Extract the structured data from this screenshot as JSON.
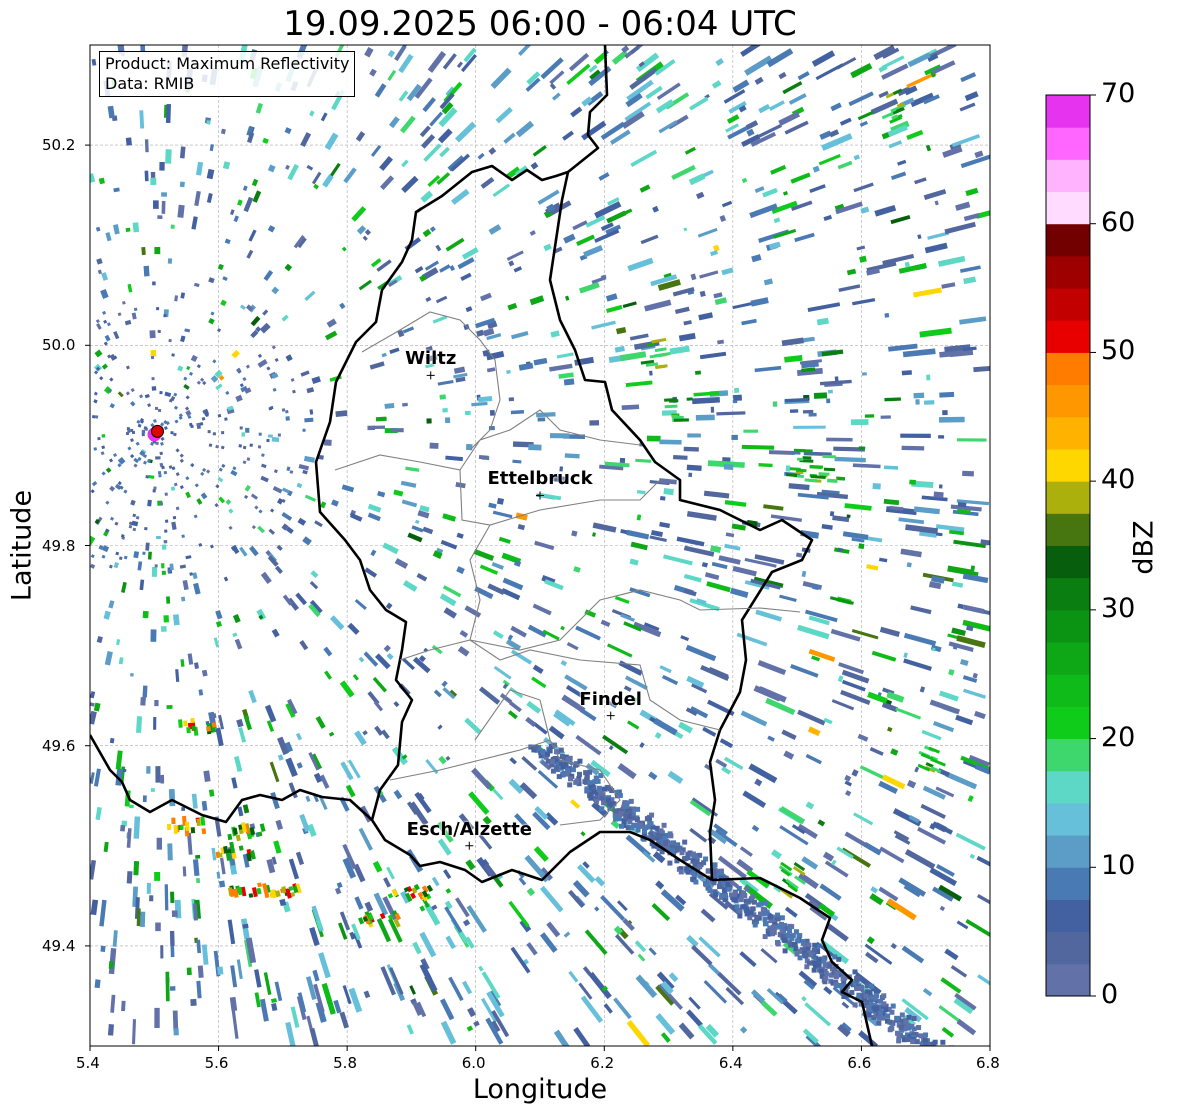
{
  "title": "19.09.2025 06:00 - 06:04 UTC",
  "info_box": {
    "product": "Product: Maximum Reflectivity",
    "source": "Data: RMIB"
  },
  "chart_data": {
    "type": "heatmap",
    "title": "19.09.2025 06:00 - 06:04 UTC",
    "xlabel": "Longitude",
    "ylabel": "Latitude",
    "xlim": [
      5.4,
      6.8
    ],
    "ylim": [
      49.3,
      50.3
    ],
    "xticks": [
      "5.4",
      "5.6",
      "5.8",
      "6.0",
      "6.2",
      "6.4",
      "6.6",
      "6.8"
    ],
    "yticks": [
      "49.4",
      "49.6",
      "49.8",
      "50.0",
      "50.2"
    ],
    "grid": true,
    "cities": [
      {
        "name": "Wiltz",
        "lon": 5.93,
        "lat": 49.97
      },
      {
        "name": "Ettelbruck",
        "lon": 6.1,
        "lat": 49.85
      },
      {
        "name": "Findel",
        "lon": 6.21,
        "lat": 49.63
      },
      {
        "name": "Esch/Alzette",
        "lon": 5.99,
        "lat": 49.5
      }
    ],
    "radar_site": {
      "lon": 5.505,
      "lat": 49.914
    },
    "colorbar": {
      "label": "dBZ",
      "range": [
        0,
        70
      ],
      "step": 2.5,
      "ticks": [
        "0",
        "10",
        "20",
        "30",
        "40",
        "50",
        "60",
        "70"
      ],
      "colors": [
        "#6272a8",
        "#52679e",
        "#4361a0",
        "#4a7ab3",
        "#5b9dc7",
        "#66c0da",
        "#5dd7c6",
        "#3ed76e",
        "#10cc1a",
        "#0fbb18",
        "#0ea816",
        "#0b9413",
        "#0a7e10",
        "#075e0d",
        "#477510",
        "#acb00c",
        "#fed700",
        "#ffb300",
        "#ff9800",
        "#ff7c00",
        "#e80000",
        "#c20000",
        "#9e0000",
        "#730000",
        "#ffdcff",
        "#ffb3ff",
        "#ff66ff",
        "#e633f0"
      ]
    }
  }
}
